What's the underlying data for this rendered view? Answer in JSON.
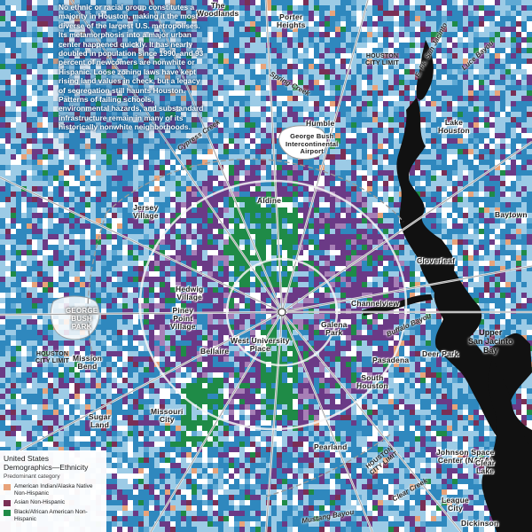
{
  "intro_text": "No ethnic or racial group constitutes a majority in Houston, making it the most diverse of the largest U.S. metropolises. Its metamorphosis into a major urban center happened quickly. It has nearly doubled in population since 1990, and 93 percent of newcomers are nonwhite or Hispanic. Loose zoning laws have kept rising land values in check, but a legacy of segregation still haunts Houston. Patterns of failing schools, environmental hazards, and substandard infrastructure remain in many of its historically nonwhite neighborhoods.",
  "legend": {
    "title": "United States\nDemographics—Ethnicity",
    "subtitle": "Predominant category",
    "items": [
      {
        "label": "American Indian/Alaska Native Non-Hispanic",
        "color": "#e8a37a"
      },
      {
        "label": "Asian Non-Hispanic",
        "color": "#7a2f55"
      },
      {
        "label": "Black/African American Non-Hispanic",
        "color": "#1f8b47"
      }
    ]
  },
  "colors": {
    "white_majority": "#2f88be",
    "white_light": "#9ccbe6",
    "hispanic": "#6b3a86",
    "hispanic_light": "#a77fb6",
    "black": "#1f8b47",
    "asian": "#7a2f55",
    "water": "#111111",
    "road": "#8d8d8d"
  },
  "places": [
    {
      "name": "The\nWoodlands"
    },
    {
      "name": "Porter\nHeights"
    },
    {
      "name": "Humble"
    },
    {
      "name": "George Bush\nIntercontinental\nAirport"
    },
    {
      "name": "Lake\nHouston"
    },
    {
      "name": "Jersey\nVillage"
    },
    {
      "name": "Aldine"
    },
    {
      "name": "Cloverleaf"
    },
    {
      "name": "Channelview"
    },
    {
      "name": "Galena\nPark"
    },
    {
      "name": "Hedwig\nVillage"
    },
    {
      "name": "Piney\nPoint\nVillage"
    },
    {
      "name": "Bellaire"
    },
    {
      "name": "West University\nPlace"
    },
    {
      "name": "South\nHouston"
    },
    {
      "name": "Pasadena"
    },
    {
      "name": "Deer Park"
    },
    {
      "name": "Upper\nSan Jacinto\nBay"
    },
    {
      "name": "Mission\nBend"
    },
    {
      "name": "Sugar\nLand"
    },
    {
      "name": "Missouri\nCity"
    },
    {
      "name": "Pearland"
    },
    {
      "name": "Johnson Space\nCenter (NASA)"
    },
    {
      "name": "Clear\nLake"
    },
    {
      "name": "League\nCity"
    },
    {
      "name": "Dickinson"
    },
    {
      "name": "Baytown"
    }
  ],
  "areas": [
    {
      "name": "GEORGE\nBUSH\nPARK"
    },
    {
      "name": "HOUSTON\nCITY LIMIT"
    },
    {
      "name": "HOUSTON\nCITY LIMIT"
    },
    {
      "name": "HOUSTON\nCITY LIMIT"
    }
  ],
  "roads": [
    {
      "name": "E. Fk. San Jacinto"
    },
    {
      "name": "Luce Bayou"
    },
    {
      "name": "Spring Creek"
    },
    {
      "name": "Cypress Creek"
    },
    {
      "name": "Buffalo Bayou"
    },
    {
      "name": "Clear Creek"
    },
    {
      "name": "Mustang Bayou"
    }
  ]
}
